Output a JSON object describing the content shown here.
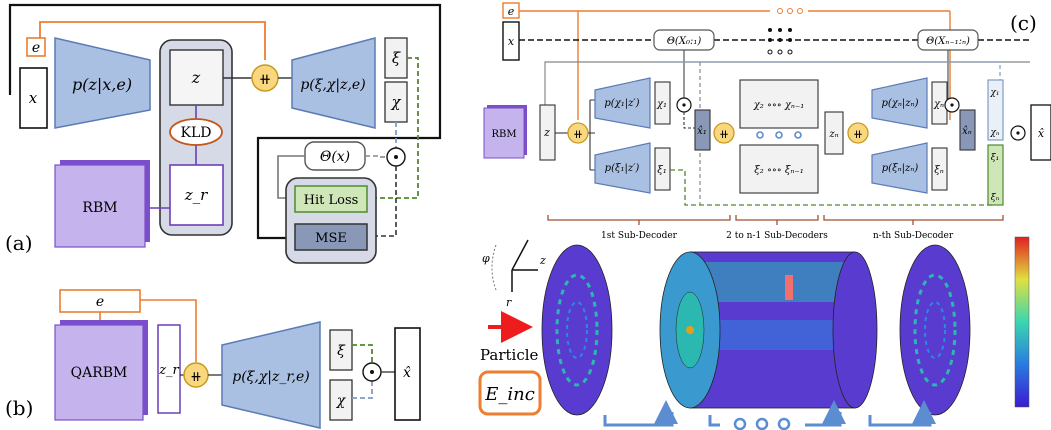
{
  "panel_a": {
    "label": "(a)",
    "x_label": "x",
    "e_label": "e",
    "encoder_label": "p(z|x,e)",
    "z_label": "z",
    "concat_symbol": "⧺",
    "decoder_label": "p(ξ,χ|z,e)",
    "xi_label": "ξ",
    "chi_label": "χ",
    "kld_label": "KLD",
    "zr_label": "z_r",
    "rbm_label": "RBM",
    "theta_label": "Θ(x)",
    "dot_symbol": "⊙",
    "hit_loss_label": "Hit Loss",
    "mse_label": "MSE"
  },
  "panel_b": {
    "label": "(b)",
    "e_label": "e",
    "qarbm_label": "QARBM",
    "zr_label": "z_r",
    "decoder_label": "p(ξ,χ|z_r,e)",
    "xi_label": "ξ",
    "chi_label": "χ",
    "xhat_label": "x̂"
  },
  "panel_c": {
    "label": "(c)",
    "e_label": "e",
    "x_label": "x",
    "theta_first": "Θ(X₀:₁)",
    "theta_last": "Θ(Xₙ₋₁:ₙ)",
    "rbm_label": "RBM",
    "z_label": "z",
    "dec1_top": "p(χ₁|z′)",
    "dec1_bot": "p(ξ₁|z′)",
    "chi1": "χ₁",
    "xi1": "ξ₁",
    "xhat1": "x̂₁",
    "mid_top": "χ₂ ∘∘∘ χₙ₋₁",
    "mid_bot": "ξ₂ ∘∘∘ ξₙ₋₁",
    "zn": "zₙ",
    "decn_top": "p(χₙ|zₙ)",
    "decn_bot": "p(ξₙ|zₙ)",
    "chin": "χₙ",
    "xin": "ξₙ",
    "xhatn": "x̂ₙ",
    "chi_stack_top": "χ₁",
    "chi_stack_bot": "χₙ",
    "xi_stack_top": "ξ₁",
    "xi_stack_bot": "ξₙ",
    "xhat": "x̂",
    "brace_1": "1st Sub-Decoder",
    "brace_2": "2 to n-1 Sub-Decoders",
    "brace_3": "n-th Sub-Decoder",
    "axis_phi": "φ",
    "axis_z": "z",
    "axis_r": "r",
    "particle_label": "Particle",
    "einc_label": "E_inc"
  },
  "colors": {
    "encoder_fill": "#aac0e2",
    "encoder_stroke": "#5a7bb5",
    "concat_fill": "#f9d77e",
    "concat_stroke": "#c89a20",
    "orange": "#ed7d31",
    "green_dash": "#4e8a2e",
    "blue_dash": "#7f9cc6",
    "rbm_fill": "#c4b3ec",
    "rbm_stroke": "#7b4fc9",
    "group_fill": "#d6dae6",
    "hit_fill": "#cfe6b8",
    "detector_purple": "#5a3bd0",
    "detector_teal": "#2ab8b0",
    "particle_red": "#ee1c1c"
  }
}
